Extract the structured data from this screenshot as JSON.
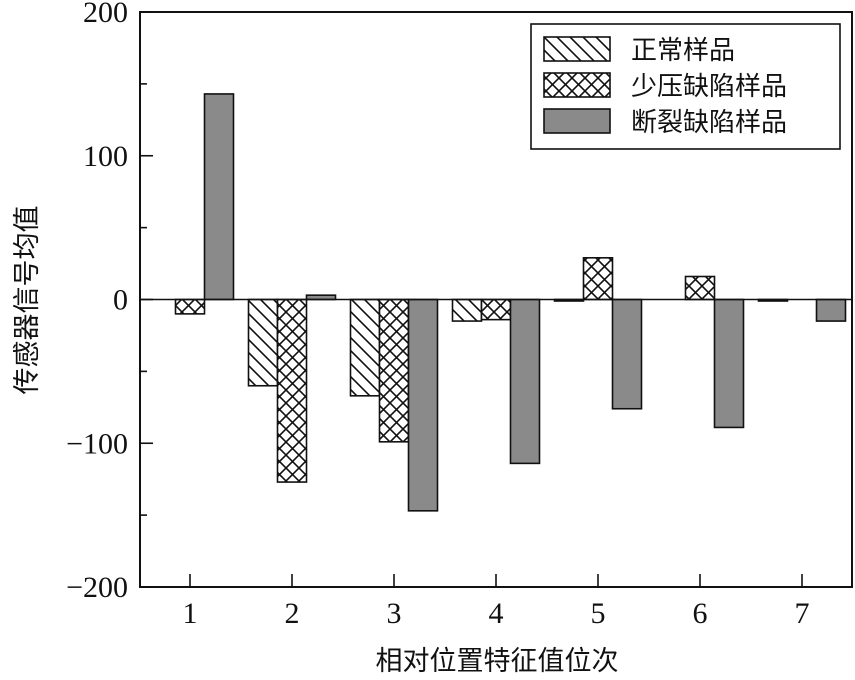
{
  "chart_data": {
    "type": "bar",
    "title": "",
    "xlabel": "相对位置特征值位次",
    "ylabel": "传感器信号均值",
    "categories": [
      "1",
      "2",
      "3",
      "4",
      "5",
      "6",
      "7"
    ],
    "series": [
      {
        "name": "正常样品",
        "pattern": "diagonal-hatch",
        "color": "#ffffff",
        "values": [
          0,
          -60,
          -67,
          -15,
          -1,
          0,
          -1
        ]
      },
      {
        "name": "少压缺陷样品",
        "pattern": "cross-hatch",
        "color": "#ffffff",
        "values": [
          -10,
          -127,
          -99,
          -14,
          29,
          16,
          0
        ]
      },
      {
        "name": "断裂缺陷样品",
        "pattern": "solid",
        "color": "#8a8a8a",
        "values": [
          143,
          3,
          -147,
          -114,
          -76,
          -89,
          -15
        ]
      }
    ],
    "ylim": [
      -200,
      200
    ],
    "yticks": [
      -200,
      -100,
      0,
      100,
      200
    ],
    "yticks_minor": [
      -150,
      -50,
      50,
      150
    ],
    "grid": false,
    "legend_position": "upper right",
    "zero_line": true
  }
}
